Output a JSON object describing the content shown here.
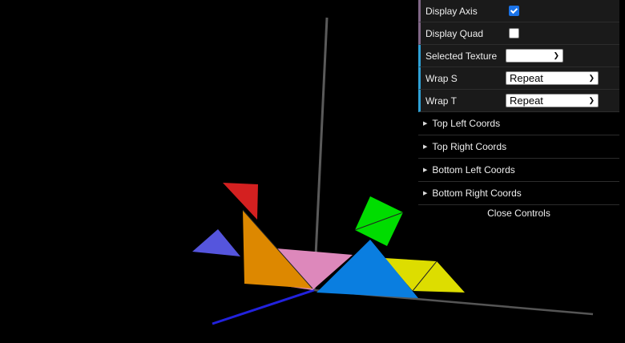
{
  "gui": {
    "controls": [
      {
        "label": "Display Axis",
        "type": "checkbox",
        "checked": true
      },
      {
        "label": "Display Quad",
        "type": "checkbox",
        "checked": false
      },
      {
        "label": "Selected Texture",
        "type": "select",
        "value": ""
      },
      {
        "label": "Wrap S",
        "type": "select",
        "value": "Repeat"
      },
      {
        "label": "Wrap T",
        "type": "select",
        "value": "Repeat"
      }
    ],
    "folders": [
      "Top Left Coords",
      "Top Right Coords",
      "Bottom Left Coords",
      "Bottom Right Coords"
    ],
    "close_label": "Close Controls"
  },
  "scene": {
    "background": "#000000",
    "piece_colors": {
      "red": "#d42020",
      "blue_small": "#5555dd",
      "orange": "#dd8800",
      "pink": "#dd88bb",
      "blue_large": "#0a7ee0",
      "green": "#00dd00",
      "yellow": "#dddd00"
    }
  }
}
